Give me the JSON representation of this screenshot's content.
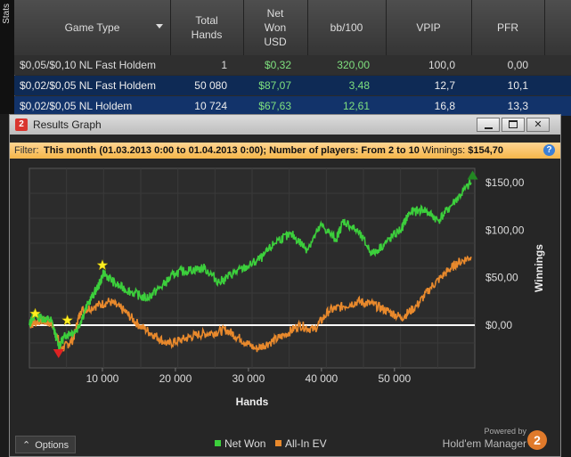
{
  "side_tab": "Stats",
  "table": {
    "columns": [
      "Game Type",
      "Total\nHands",
      "Net\nWon\nUSD",
      "bb/100",
      "VPIP",
      "PFR"
    ],
    "rows": [
      [
        "$0,05/$0,10 NL Fast Holdem",
        "1",
        "$0,32",
        "320,00",
        "100,0",
        "0,00"
      ],
      [
        "$0,02/$0,05 NL Fast Holdem",
        "50 080",
        "$87,07",
        "3,48",
        "12,7",
        "10,1"
      ],
      [
        "$0,02/$0,05 NL Holdem",
        "10 724",
        "$67,63",
        "12,61",
        "16,8",
        "13,3"
      ]
    ]
  },
  "window": {
    "title": "Results Graph",
    "app_icon": "2",
    "filter_label": "Filter:",
    "filter_text": "This month (01.03.2013 0:00 to 01.04.2013 0:00); Number of players: From 2 to 10",
    "winnings_label": "Winnings:",
    "winnings_value": "$154,70",
    "options_label": "Options",
    "powered_by": "Powered by",
    "brand": "Hold'em Manager",
    "brand_logo": "2"
  },
  "chart_data": {
    "type": "line",
    "xlabel": "Hands",
    "ylabel": "Winnings",
    "xlim": [
      0,
      61000
    ],
    "ylim": [
      -45,
      165
    ],
    "x_ticks": [
      10000,
      20000,
      30000,
      40000,
      50000
    ],
    "x_tick_labels": [
      "10 000",
      "20 000",
      "30 000",
      "40 000",
      "50 000"
    ],
    "y_ticks": [
      0,
      50,
      100,
      150
    ],
    "y_tick_labels": [
      "$0,00",
      "$50,00",
      "$100,00",
      "$150,00"
    ],
    "legend_position": "bottom-center",
    "grid": true,
    "series": [
      {
        "name": "Net Won",
        "color": "#3ccf3c",
        "x": [
          0,
          500,
          1500,
          3000,
          4000,
          5000,
          6500,
          8000,
          9500,
          10200,
          12000,
          14000,
          16000,
          18000,
          20000,
          22000,
          24000,
          26000,
          28000,
          30000,
          32000,
          34000,
          36000,
          38000,
          40000,
          42000,
          43000,
          45000,
          47000,
          49000,
          51000,
          52000,
          54000,
          56000,
          58000,
          60500
        ],
        "values": [
          0,
          10,
          8,
          5,
          -22,
          -10,
          -5,
          22,
          42,
          55,
          42,
          35,
          28,
          40,
          55,
          58,
          60,
          45,
          55,
          62,
          72,
          90,
          95,
          80,
          105,
          90,
          110,
          98,
          75,
          88,
          102,
          118,
          122,
          110,
          128,
          150
        ]
      },
      {
        "name": "All-In EV",
        "color": "#e8892c",
        "x": [
          0,
          1500,
          3000,
          4500,
          6000,
          7000,
          9000,
          11000,
          13000,
          15000,
          17000,
          19000,
          21000,
          23000,
          25000,
          27000,
          29000,
          31000,
          33000,
          35000,
          37000,
          39000,
          41000,
          43000,
          45000,
          47000,
          49000,
          51000,
          53000,
          55000,
          57000,
          58500,
          60500
        ],
        "values": [
          0,
          5,
          2,
          -25,
          -15,
          15,
          20,
          25,
          15,
          0,
          -10,
          -20,
          -15,
          -10,
          -8,
          -5,
          -15,
          -25,
          -18,
          -10,
          0,
          -5,
          15,
          20,
          25,
          22,
          15,
          8,
          20,
          40,
          55,
          65,
          72
        ]
      }
    ],
    "markers": [
      {
        "type": "star",
        "x": 800,
        "y": 12,
        "color": "#ffee22"
      },
      {
        "type": "star",
        "x": 5200,
        "y": 5,
        "color": "#ffee22"
      },
      {
        "type": "star",
        "x": 10000,
        "y": 63,
        "color": "#ffee22"
      },
      {
        "type": "triangle-down",
        "x": 4000,
        "y": -30,
        "color": "#dd2222"
      },
      {
        "type": "triangle-up",
        "x": 60700,
        "y": 158,
        "color": "#228822"
      }
    ]
  }
}
